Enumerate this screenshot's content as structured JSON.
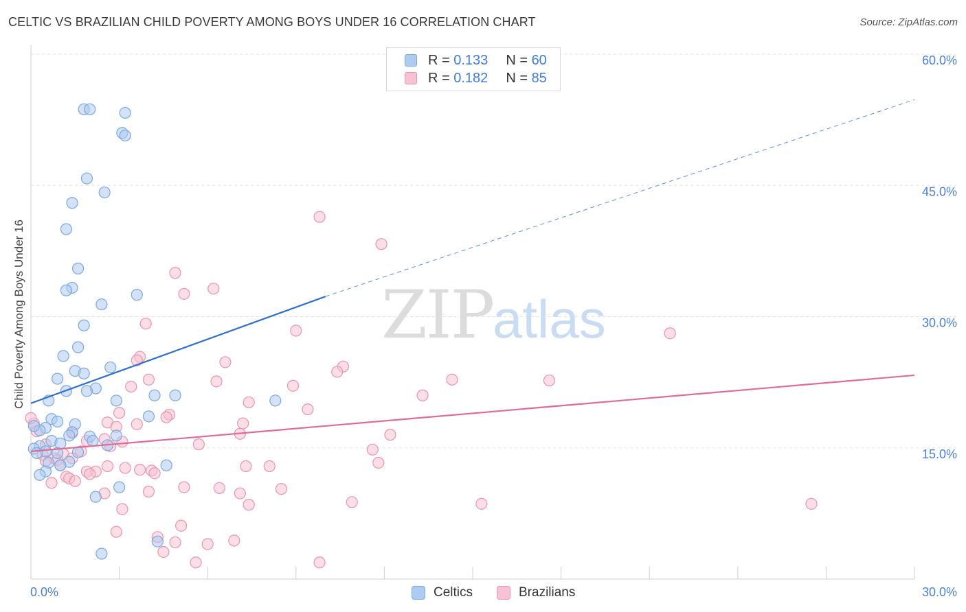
{
  "header": {
    "title": "CELTIC VS BRAZILIAN CHILD POVERTY AMONG BOYS UNDER 16 CORRELATION CHART",
    "source": "Source: ZipAtlas.com"
  },
  "watermark": {
    "zip": "ZIP",
    "atlas": "atlas"
  },
  "legend": {
    "series": [
      {
        "r_label": "R =",
        "r_value": "0.133",
        "n_label": "N =",
        "n_value": "60"
      },
      {
        "r_label": "R =",
        "r_value": "0.182",
        "n_label": "N =",
        "n_value": "85"
      }
    ],
    "bottom": [
      "Celtics",
      "Brazilians"
    ]
  },
  "colors": {
    "celtics_fill": "#aecbf0",
    "celtics_stroke": "#7aa8e0",
    "celtics_line": "#2f6fce",
    "brazilians_fill": "#f7c3d2",
    "brazilians_stroke": "#eb93ae",
    "brazilians_line": "#e06c95",
    "tick_label": "#4a80d4",
    "grid": "#e3e3e3"
  },
  "chart_data": {
    "type": "scatter",
    "title": "CELTIC VS BRAZILIAN CHILD POVERTY AMONG BOYS UNDER 16 CORRELATION CHART",
    "xlabel": "",
    "ylabel": "Child Poverty Among Boys Under 16",
    "xlim": [
      0,
      30
    ],
    "ylim": [
      0,
      60
    ],
    "x_tick_labels": [
      "0.0%",
      "30.0%"
    ],
    "y_ticks": [
      15,
      30,
      45,
      60
    ],
    "y_tick_labels": [
      "15.0%",
      "30.0%",
      "45.0%",
      "60.0%"
    ],
    "grid": true,
    "series": [
      {
        "name": "Celtics",
        "r": 0.133,
        "n": 60,
        "trend": {
          "x0": 0,
          "y0": 20.1,
          "x_solid_end": 10,
          "y_solid_end": 32.3,
          "x1": 30,
          "y1": 54.8
        },
        "points": [
          [
            1.8,
            53.7
          ],
          [
            2.0,
            53.7
          ],
          [
            3.2,
            53.3
          ],
          [
            3.1,
            51.0
          ],
          [
            3.2,
            50.7
          ],
          [
            1.9,
            45.8
          ],
          [
            2.5,
            44.2
          ],
          [
            1.4,
            43.0
          ],
          [
            1.2,
            40.0
          ],
          [
            1.6,
            35.5
          ],
          [
            1.4,
            33.3
          ],
          [
            1.2,
            33.0
          ],
          [
            3.6,
            32.5
          ],
          [
            2.4,
            31.4
          ],
          [
            1.8,
            29.0
          ],
          [
            1.6,
            26.5
          ],
          [
            1.1,
            25.5
          ],
          [
            2.7,
            24.2
          ],
          [
            1.5,
            23.8
          ],
          [
            1.8,
            23.5
          ],
          [
            0.9,
            22.9
          ],
          [
            2.2,
            21.8
          ],
          [
            1.9,
            21.5
          ],
          [
            1.2,
            21.5
          ],
          [
            4.2,
            21.0
          ],
          [
            4.9,
            21.0
          ],
          [
            8.3,
            20.4
          ],
          [
            2.9,
            20.4
          ],
          [
            0.6,
            20.4
          ],
          [
            0.7,
            18.3
          ],
          [
            4.0,
            18.6
          ],
          [
            0.9,
            18.0
          ],
          [
            1.5,
            17.7
          ],
          [
            0.5,
            17.3
          ],
          [
            0.3,
            17.0
          ],
          [
            0.1,
            17.5
          ],
          [
            1.4,
            16.8
          ],
          [
            1.3,
            16.4
          ],
          [
            2.0,
            16.3
          ],
          [
            2.1,
            15.8
          ],
          [
            2.9,
            16.4
          ],
          [
            0.7,
            15.8
          ],
          [
            1.0,
            15.5
          ],
          [
            0.3,
            15.2
          ],
          [
            0.1,
            14.9
          ],
          [
            0.5,
            14.6
          ],
          [
            0.2,
            14.4
          ],
          [
            0.9,
            14.4
          ],
          [
            1.6,
            14.5
          ],
          [
            1.3,
            13.4
          ],
          [
            0.6,
            13.3
          ],
          [
            2.6,
            15.3
          ],
          [
            1.0,
            13.0
          ],
          [
            4.6,
            13.0
          ],
          [
            0.5,
            12.3
          ],
          [
            0.3,
            11.9
          ],
          [
            3.0,
            10.5
          ],
          [
            2.2,
            9.4
          ],
          [
            4.3,
            4.3
          ],
          [
            2.4,
            2.9
          ]
        ]
      },
      {
        "name": "Brazilians",
        "r": 0.182,
        "n": 85,
        "trend": {
          "x0": 0,
          "y0": 14.6,
          "x1": 30,
          "y1": 23.3
        },
        "points": [
          [
            9.8,
            41.4
          ],
          [
            11.9,
            38.3
          ],
          [
            4.9,
            35.0
          ],
          [
            6.2,
            33.2
          ],
          [
            5.2,
            32.6
          ],
          [
            3.9,
            29.2
          ],
          [
            9.0,
            28.4
          ],
          [
            21.7,
            28.1
          ],
          [
            3.7,
            25.4
          ],
          [
            3.6,
            25.0
          ],
          [
            6.6,
            24.8
          ],
          [
            10.6,
            24.3
          ],
          [
            10.4,
            23.7
          ],
          [
            4.0,
            22.8
          ],
          [
            6.3,
            22.6
          ],
          [
            14.3,
            22.8
          ],
          [
            17.6,
            22.7
          ],
          [
            8.9,
            22.1
          ],
          [
            3.4,
            22.0
          ],
          [
            13.3,
            21.0
          ],
          [
            7.4,
            20.2
          ],
          [
            9.4,
            19.4
          ],
          [
            3.0,
            19.0
          ],
          [
            4.7,
            18.8
          ],
          [
            4.6,
            18.5
          ],
          [
            2.6,
            17.9
          ],
          [
            2.9,
            17.4
          ],
          [
            3.6,
            17.7
          ],
          [
            7.2,
            17.8
          ],
          [
            1.4,
            16.7
          ],
          [
            7.1,
            16.6
          ],
          [
            12.2,
            16.5
          ],
          [
            2.5,
            16.0
          ],
          [
            1.9,
            15.8
          ],
          [
            3.1,
            15.7
          ],
          [
            5.7,
            15.4
          ],
          [
            2.7,
            15.2
          ],
          [
            1.7,
            14.6
          ],
          [
            0.5,
            15.4
          ],
          [
            11.6,
            14.8
          ],
          [
            1.1,
            14.3
          ],
          [
            0.4,
            14.2
          ],
          [
            1.4,
            13.8
          ],
          [
            0.8,
            13.8
          ],
          [
            0.9,
            13.6
          ],
          [
            0.5,
            13.5
          ],
          [
            1.0,
            13.0
          ],
          [
            2.6,
            12.9
          ],
          [
            3.2,
            12.7
          ],
          [
            3.7,
            12.5
          ],
          [
            4.1,
            12.4
          ],
          [
            2.2,
            12.3
          ],
          [
            1.9,
            12.3
          ],
          [
            2.0,
            12.0
          ],
          [
            4.2,
            12.1
          ],
          [
            1.2,
            11.7
          ],
          [
            1.3,
            11.5
          ],
          [
            0.7,
            11.0
          ],
          [
            11.8,
            13.3
          ],
          [
            7.3,
            12.9
          ],
          [
            8.1,
            12.9
          ],
          [
            5.2,
            10.5
          ],
          [
            4.0,
            10.0
          ],
          [
            6.4,
            10.4
          ],
          [
            8.5,
            10.3
          ],
          [
            7.1,
            9.8
          ],
          [
            2.5,
            9.8
          ],
          [
            7.4,
            8.5
          ],
          [
            10.9,
            8.8
          ],
          [
            15.3,
            8.6
          ],
          [
            26.5,
            8.6
          ],
          [
            3.1,
            8.0
          ],
          [
            5.1,
            6.1
          ],
          [
            2.9,
            5.4
          ],
          [
            4.3,
            4.8
          ],
          [
            6.9,
            4.4
          ],
          [
            4.9,
            4.2
          ],
          [
            6.0,
            4.0
          ],
          [
            4.5,
            3.1
          ],
          [
            5.6,
            1.9
          ],
          [
            9.8,
            1.9
          ],
          [
            0.1,
            17.8
          ],
          [
            0.0,
            18.4
          ],
          [
            0.2,
            16.9
          ],
          [
            1.5,
            11.2
          ]
        ]
      }
    ]
  }
}
